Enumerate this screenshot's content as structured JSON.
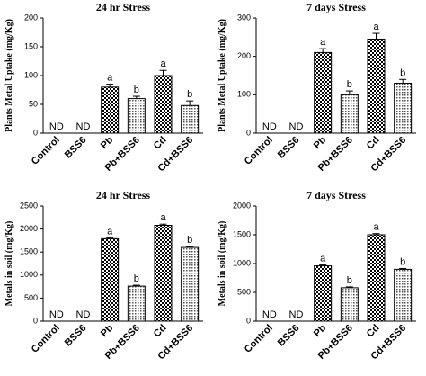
{
  "chart_data": [
    {
      "type": "bar",
      "title": "24 hr Stress",
      "y_label": "Plants Metal Uptake (mg/Kg)",
      "categories": [
        "Control",
        "BSS6",
        "Pb",
        "Pb+BSS6",
        "Cd",
        "Cd+BSS6"
      ],
      "values": [
        null,
        null,
        80,
        60,
        100,
        48
      ],
      "errors": [
        null,
        null,
        5,
        4,
        9,
        8
      ],
      "annotations": [
        "ND",
        "ND",
        "a",
        "b",
        "a",
        "b"
      ],
      "ylim": [
        0,
        200
      ],
      "yticks": [
        0,
        50,
        100,
        150,
        200
      ]
    },
    {
      "type": "bar",
      "title": "7 days Stress",
      "y_label": "Plants Metal Uptake (mg/Kg)",
      "categories": [
        "Control",
        "BSS6",
        "Pb",
        "Pb+BSS6",
        "Cd",
        "Cd+BSS6"
      ],
      "values": [
        null,
        null,
        210,
        100,
        245,
        130
      ],
      "errors": [
        null,
        null,
        10,
        10,
        15,
        10
      ],
      "annotations": [
        "ND",
        "ND",
        "a",
        "b",
        "a",
        "b"
      ],
      "ylim": [
        0,
        300
      ],
      "yticks": [
        0,
        100,
        200,
        300
      ]
    },
    {
      "type": "bar",
      "title": "24 hr Stress",
      "y_label": "Metals in soil (mg/Kg)",
      "categories": [
        "Control",
        "BSS6",
        "Pb",
        "Pb+BSS6",
        "Cd",
        "Cd+BSS6"
      ],
      "values": [
        null,
        null,
        1790,
        760,
        2080,
        1600
      ],
      "errors": [
        null,
        null,
        20,
        20,
        25,
        20
      ],
      "annotations": [
        "ND",
        "ND",
        "a",
        "b",
        "a",
        "b"
      ],
      "ylim": [
        0,
        2500
      ],
      "yticks": [
        0,
        500,
        1000,
        1500,
        2000,
        2500
      ]
    },
    {
      "type": "bar",
      "title": "7 days Stress",
      "y_label": "Metals in soil (mg/Kg)",
      "categories": [
        "Control",
        "BSS6",
        "Pb",
        "Pb+BSS6",
        "Cd",
        "Cd+BSS6"
      ],
      "values": [
        null,
        null,
        960,
        580,
        1500,
        900
      ],
      "errors": [
        null,
        null,
        15,
        15,
        20,
        15
      ],
      "annotations": [
        "ND",
        "ND",
        "a",
        "b",
        "a",
        "b"
      ],
      "ylim": [
        0,
        2000
      ],
      "yticks": [
        0,
        500,
        1000,
        1500,
        2000
      ]
    }
  ]
}
